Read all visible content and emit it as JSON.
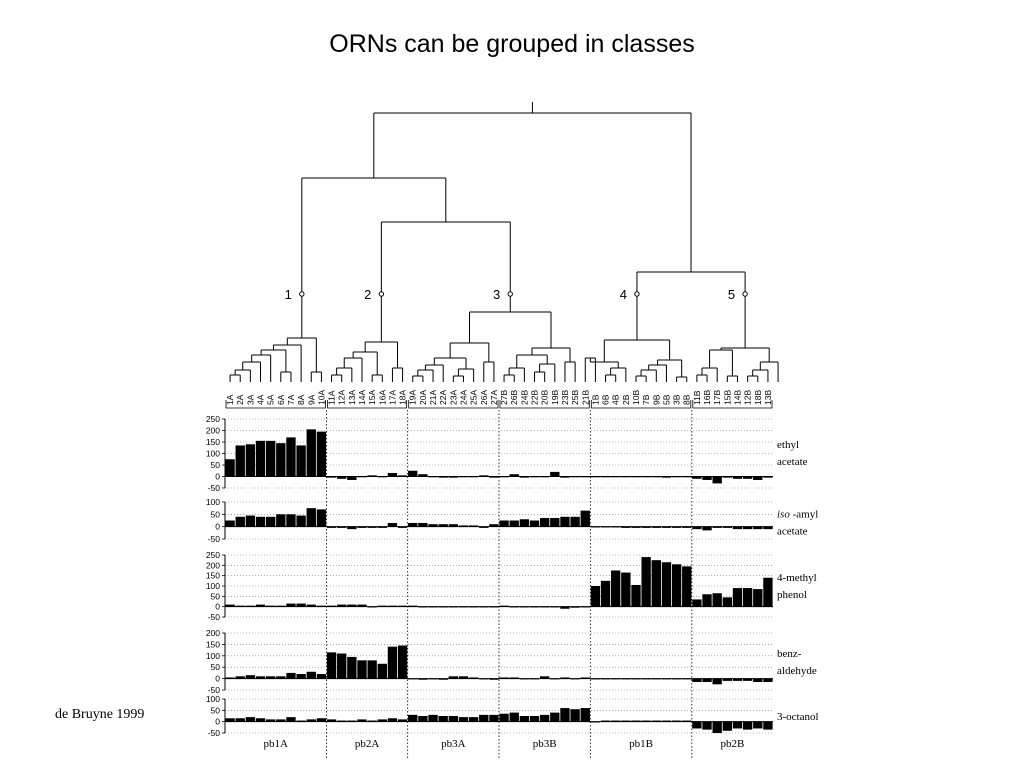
{
  "slide": {
    "title": "ORNs can be grouped in classes",
    "credit": "de Bruyne 1999"
  },
  "chart_data": {
    "type": "bar",
    "neurons": [
      "1A",
      "2A",
      "3A",
      "4A",
      "5A",
      "6A",
      "7A",
      "8A",
      "9A",
      "10A",
      "11A",
      "12A",
      "13A",
      "14A",
      "15A",
      "16A",
      "17A",
      "18A",
      "19A",
      "20A",
      "21A",
      "22A",
      "23A",
      "24A",
      "25A",
      "26A",
      "27A",
      "27B",
      "26B",
      "24B",
      "22B",
      "20B",
      "19B",
      "23B",
      "25B",
      "21B",
      "1B",
      "6B",
      "4B",
      "2B",
      "10B",
      "7B",
      "9B",
      "5B",
      "3B",
      "8B",
      "11B",
      "16B",
      "17B",
      "15B",
      "14B",
      "12B",
      "18B",
      "13B"
    ],
    "groups": [
      {
        "label": "pb1A",
        "count": 10
      },
      {
        "label": "pb2A",
        "count": 8
      },
      {
        "label": "pb3A",
        "count": 9
      },
      {
        "label": "pb3B",
        "count": 9
      },
      {
        "label": "pb1B",
        "count": 10
      },
      {
        "label": "pb2B",
        "count": 8
      }
    ],
    "clusters": [
      "1",
      "2",
      "3",
      "4",
      "5"
    ],
    "panels": [
      {
        "odor_line1": "ethyl",
        "odor_line2": "acetate",
        "odor_italic": "",
        "ylim": [
          -50,
          250
        ],
        "yticks": [
          "250",
          "200",
          "150",
          "100",
          "50",
          "0",
          "-50"
        ],
        "values": [
          75,
          135,
          140,
          155,
          155,
          145,
          170,
          135,
          205,
          195,
          -5,
          -10,
          -15,
          0,
          5,
          0,
          15,
          5,
          25,
          10,
          0,
          -5,
          -5,
          0,
          0,
          5,
          -5,
          0,
          10,
          -5,
          0,
          0,
          20,
          -5,
          0,
          0,
          0,
          0,
          0,
          0,
          0,
          0,
          0,
          -5,
          0,
          0,
          -10,
          -15,
          -30,
          -5,
          -10,
          -10,
          -15,
          -5
        ]
      },
      {
        "odor_line1": " -amyl",
        "odor_line2": "acetate",
        "odor_italic": "iso",
        "ylim": [
          -50,
          100
        ],
        "yticks": [
          "100",
          "50",
          "0",
          "-50"
        ],
        "values": [
          25,
          40,
          45,
          40,
          40,
          50,
          50,
          45,
          75,
          70,
          -5,
          -5,
          -10,
          -5,
          -5,
          -5,
          15,
          -5,
          15,
          15,
          10,
          10,
          10,
          5,
          5,
          -5,
          10,
          25,
          25,
          30,
          25,
          35,
          35,
          40,
          40,
          65,
          0,
          0,
          0,
          -5,
          -5,
          -5,
          -5,
          -5,
          -5,
          -5,
          -10,
          -15,
          -5,
          -5,
          -10,
          -10,
          -10,
          -10
        ]
      },
      {
        "odor_line1": "4-methyl",
        "odor_line2": "phenol",
        "odor_italic": "",
        "ylim": [
          -50,
          250
        ],
        "yticks": [
          "250",
          "200",
          "150",
          "100",
          "50",
          "0",
          "-50"
        ],
        "values": [
          10,
          5,
          5,
          10,
          5,
          5,
          15,
          15,
          10,
          5,
          5,
          10,
          10,
          10,
          0,
          5,
          5,
          5,
          5,
          0,
          0,
          0,
          0,
          0,
          0,
          0,
          0,
          5,
          0,
          0,
          0,
          0,
          0,
          -10,
          -5,
          0,
          100,
          125,
          175,
          165,
          105,
          240,
          225,
          215,
          205,
          195,
          35,
          60,
          65,
          45,
          90,
          90,
          85,
          140
        ]
      },
      {
        "odor_line1": "benz-",
        "odor_line2": "aldehyde",
        "odor_italic": "",
        "ylim": [
          -50,
          200
        ],
        "yticks": [
          "200",
          "150",
          "100",
          "50",
          "0",
          "-50"
        ],
        "values": [
          5,
          10,
          15,
          10,
          10,
          10,
          25,
          20,
          30,
          20,
          115,
          110,
          95,
          80,
          80,
          65,
          140,
          145,
          0,
          -5,
          0,
          -5,
          10,
          10,
          5,
          0,
          -5,
          5,
          5,
          0,
          0,
          10,
          0,
          5,
          0,
          5,
          0,
          0,
          0,
          0,
          0,
          0,
          0,
          0,
          0,
          0,
          -15,
          -15,
          -25,
          -10,
          -10,
          -10,
          -15,
          -15
        ]
      },
      {
        "odor_line1": "3-octanol",
        "odor_line2": "",
        "odor_italic": "",
        "ylim": [
          -50,
          100
        ],
        "yticks": [
          "100",
          "50",
          "0",
          "-50"
        ],
        "values": [
          15,
          15,
          20,
          15,
          10,
          10,
          20,
          5,
          10,
          15,
          10,
          5,
          5,
          10,
          5,
          10,
          15,
          10,
          30,
          25,
          30,
          25,
          25,
          20,
          20,
          30,
          30,
          35,
          40,
          25,
          25,
          30,
          40,
          60,
          55,
          60,
          0,
          5,
          5,
          5,
          5,
          5,
          5,
          5,
          5,
          5,
          -30,
          -35,
          -50,
          -40,
          -30,
          -35,
          -30,
          -35
        ]
      }
    ]
  }
}
